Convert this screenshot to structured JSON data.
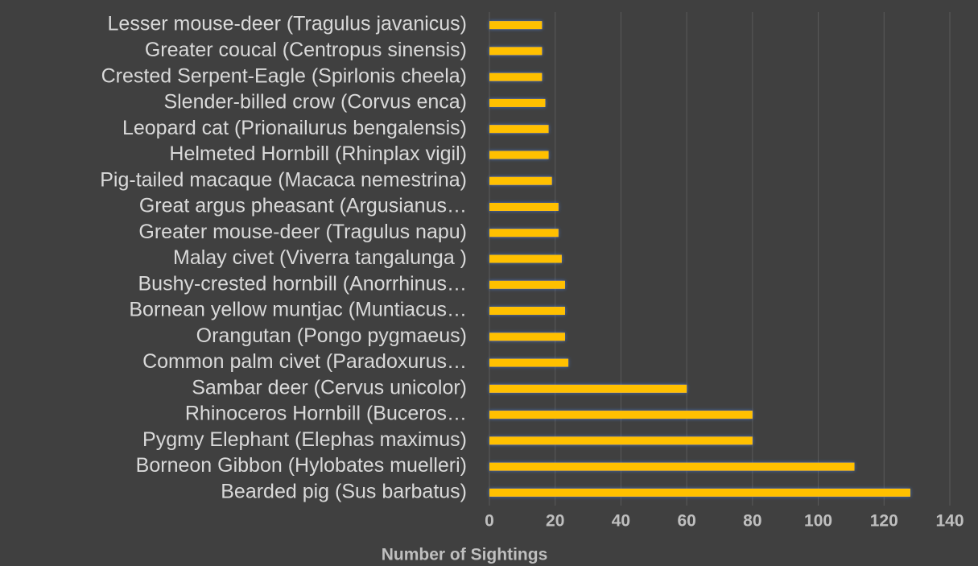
{
  "chart_data": {
    "type": "bar",
    "orientation": "horizontal",
    "x_label": "Number of Sightings",
    "categories": [
      "Bearded pig (Sus barbatus)",
      "Borneon Gibbon (Hylobates muelleri)",
      "Pygmy Elephant (Elephas maximus)",
      "Rhinoceros Hornbill (Buceros…",
      "Sambar deer (Cervus unicolor)",
      "Common palm civet (Paradoxurus…",
      "Orangutan (Pongo pygmaeus)",
      "Bornean yellow muntjac (Muntiacus…",
      "Bushy-crested hornbill (Anorrhinus…",
      "Malay civet (Viverra tangalunga )",
      "Greater mouse-deer (Tragulus napu)",
      "Great argus pheasant (Argusianus…",
      "Pig-tailed macaque (Macaca nemestrina)",
      "Helmeted Hornbill (Rhinplax vigil)",
      "Leopard cat (Prionailurus bengalensis)",
      "Slender-billed crow (Corvus enca)",
      "Crested Serpent-Eagle (Spirlonis cheela)",
      "Greater coucal (Centropus sinensis)",
      "Lesser mouse-deer (Tragulus javanicus)"
    ],
    "values": [
      128,
      111,
      80,
      80,
      60,
      24,
      23,
      23,
      23,
      22,
      21,
      21,
      19,
      18,
      18,
      17,
      16,
      16,
      16
    ],
    "color": "#ffc000",
    "xlim": [
      0,
      140
    ],
    "xticks": [
      0,
      20,
      40,
      60,
      80,
      100,
      120,
      140
    ],
    "grid": true
  }
}
